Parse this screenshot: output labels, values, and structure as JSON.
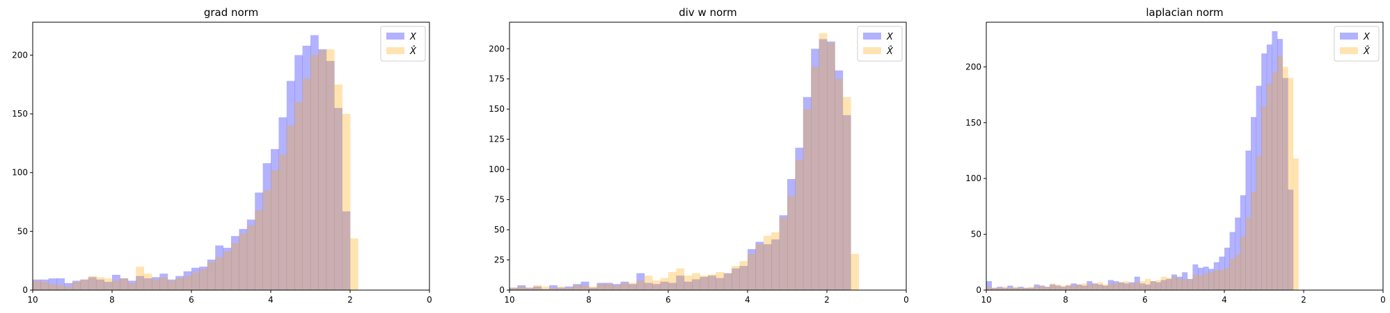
{
  "colors": {
    "series_x": "#0000ff",
    "series_xhat": "#ffa500",
    "series_alpha": 0.3
  },
  "chart_data": [
    {
      "type": "bar",
      "title": "grad norm",
      "xlabel": "",
      "ylabel": "",
      "xlim": [
        10,
        0
      ],
      "ylim": [
        0,
        228
      ],
      "x_ticks": [
        "10",
        "8",
        "6",
        "4",
        "2",
        "0"
      ],
      "y_ticks": [
        "0",
        "50",
        "100",
        "150",
        "200"
      ],
      "legend_position": "top-right",
      "grid": false,
      "bin_width": 0.2,
      "series": [
        {
          "name": "X",
          "legend_label": "X",
          "bin_starts": [
            10.0,
            9.8,
            9.6,
            9.4,
            9.2,
            9.0,
            8.8,
            8.6,
            8.4,
            8.2,
            8.0,
            7.8,
            7.6,
            7.4,
            7.2,
            7.0,
            6.8,
            6.6,
            6.4,
            6.2,
            6.0,
            5.8,
            5.6,
            5.4,
            5.2,
            5.0,
            4.8,
            4.6,
            4.4,
            4.2,
            4.0,
            3.8,
            3.6,
            3.4,
            3.2,
            3.0,
            2.8,
            2.6,
            2.4,
            2.2
          ],
          "values": [
            9,
            9,
            10,
            10,
            6,
            8,
            9,
            11,
            9,
            7,
            13,
            10,
            8,
            12,
            10,
            11,
            14,
            9,
            12,
            16,
            19,
            20,
            26,
            38,
            36,
            46,
            52,
            60,
            83,
            108,
            120,
            147,
            178,
            200,
            208,
            217,
            205,
            195,
            155,
            67
          ]
        },
        {
          "name": "X-hat",
          "legend_label": "X̂",
          "bin_starts": [
            10.0,
            9.8,
            9.6,
            9.4,
            9.2,
            9.0,
            8.8,
            8.6,
            8.4,
            8.2,
            8.0,
            7.8,
            7.6,
            7.4,
            7.2,
            7.0,
            6.8,
            6.6,
            6.4,
            6.2,
            6.0,
            5.8,
            5.6,
            5.4,
            5.2,
            5.0,
            4.8,
            4.6,
            4.4,
            4.2,
            4.0,
            3.8,
            3.6,
            3.4,
            3.2,
            3.0,
            2.8,
            2.6,
            2.4,
            2.2,
            2.0,
            1.8
          ],
          "values": [
            8,
            7,
            5,
            4,
            3,
            7,
            9,
            12,
            11,
            10,
            8,
            10,
            6,
            20,
            14,
            9,
            11,
            8,
            10,
            12,
            15,
            18,
            24,
            28,
            33,
            40,
            48,
            55,
            68,
            85,
            102,
            115,
            140,
            160,
            180,
            200,
            204,
            205,
            175,
            150,
            44,
            0
          ]
        }
      ]
    },
    {
      "type": "bar",
      "title": "div w norm",
      "xlabel": "",
      "ylabel": "",
      "xlim": [
        10,
        0
      ],
      "ylim": [
        0,
        222
      ],
      "x_ticks": [
        "10",
        "8",
        "6",
        "4",
        "2",
        "0"
      ],
      "y_ticks": [
        "0",
        "25",
        "50",
        "75",
        "100",
        "125",
        "150",
        "175",
        "200"
      ],
      "legend_position": "top-right",
      "grid": false,
      "bin_width": 0.2,
      "series": [
        {
          "name": "X",
          "legend_label": "X",
          "bin_starts": [
            10.0,
            9.8,
            9.6,
            9.4,
            9.2,
            9.0,
            8.8,
            8.6,
            8.4,
            8.2,
            8.0,
            7.8,
            7.6,
            7.4,
            7.2,
            7.0,
            6.8,
            6.6,
            6.4,
            6.2,
            6.0,
            5.8,
            5.6,
            5.4,
            5.2,
            5.0,
            4.8,
            4.6,
            4.4,
            4.2,
            4.0,
            3.8,
            3.6,
            3.4,
            3.2,
            3.0,
            2.8,
            2.6,
            2.4,
            2.2,
            2.0,
            1.8,
            1.6
          ],
          "values": [
            2,
            4,
            2,
            3,
            1,
            4,
            2,
            3,
            5,
            7,
            2,
            6,
            6,
            5,
            7,
            5,
            14,
            6,
            5,
            7,
            6,
            12,
            7,
            9,
            11,
            12,
            10,
            14,
            18,
            20,
            34,
            40,
            38,
            42,
            62,
            92,
            118,
            160,
            200,
            208,
            206,
            182,
            145
          ]
        },
        {
          "name": "X-hat",
          "legend_label": "X̂",
          "bin_starts": [
            10.0,
            9.8,
            9.6,
            9.4,
            9.2,
            9.0,
            8.8,
            8.6,
            8.4,
            8.2,
            8.0,
            7.8,
            7.6,
            7.4,
            7.2,
            7.0,
            6.8,
            6.6,
            6.4,
            6.2,
            6.0,
            5.8,
            5.6,
            5.4,
            5.2,
            5.0,
            4.8,
            4.6,
            4.4,
            4.2,
            4.0,
            3.8,
            3.6,
            3.4,
            3.2,
            3.0,
            2.8,
            2.6,
            2.4,
            2.2,
            2.0,
            1.8,
            1.6,
            1.4
          ],
          "values": [
            2,
            3,
            2,
            4,
            3,
            2,
            3,
            2,
            4,
            4,
            3,
            5,
            5,
            4,
            6,
            6,
            8,
            12,
            8,
            10,
            15,
            18,
            12,
            14,
            12,
            13,
            15,
            14,
            20,
            24,
            30,
            38,
            45,
            48,
            60,
            78,
            108,
            150,
            185,
            213,
            205,
            175,
            160,
            30
          ]
        }
      ]
    },
    {
      "type": "bar",
      "title": "laplacian norm",
      "xlabel": "",
      "ylabel": "",
      "xlim": [
        10,
        0
      ],
      "ylim": [
        0,
        240
      ],
      "x_ticks": [
        "10",
        "8",
        "6",
        "4",
        "2",
        "0"
      ],
      "y_ticks": [
        "0",
        "50",
        "100",
        "150",
        "200"
      ],
      "legend_position": "top-right",
      "grid": false,
      "bin_width": 0.1333,
      "series": [
        {
          "name": "X",
          "legend_label": "X",
          "bin_starts": [
            10.0,
            9.867,
            9.733,
            9.6,
            9.467,
            9.333,
            9.2,
            9.067,
            8.933,
            8.8,
            8.667,
            8.533,
            8.4,
            8.267,
            8.133,
            8.0,
            7.867,
            7.733,
            7.6,
            7.467,
            7.333,
            7.2,
            7.067,
            6.933,
            6.8,
            6.667,
            6.533,
            6.4,
            6.267,
            6.133,
            6.0,
            5.867,
            5.733,
            5.6,
            5.467,
            5.333,
            5.2,
            5.067,
            4.933,
            4.8,
            4.667,
            4.533,
            4.4,
            4.267,
            4.133,
            4.0,
            3.867,
            3.733,
            3.6,
            3.467,
            3.333,
            3.2,
            3.067,
            2.933,
            2.8,
            2.667,
            2.533,
            2.4
          ],
          "values": [
            8,
            2,
            3,
            2,
            4,
            2,
            3,
            2,
            2,
            5,
            4,
            3,
            5,
            4,
            3,
            4,
            6,
            5,
            4,
            8,
            6,
            5,
            4,
            9,
            8,
            7,
            6,
            7,
            12,
            6,
            5,
            8,
            7,
            9,
            10,
            14,
            12,
            16,
            10,
            23,
            20,
            21,
            19,
            25,
            30,
            38,
            52,
            65,
            85,
            125,
            155,
            183,
            212,
            220,
            232,
            225,
            190,
            90
          ]
        },
        {
          "name": "X-hat",
          "legend_label": "X̂",
          "bin_starts": [
            10.0,
            9.867,
            9.733,
            9.6,
            9.467,
            9.333,
            9.2,
            9.067,
            8.933,
            8.8,
            8.667,
            8.533,
            8.4,
            8.267,
            8.133,
            8.0,
            7.867,
            7.733,
            7.6,
            7.467,
            7.333,
            7.2,
            7.067,
            6.933,
            6.8,
            6.667,
            6.533,
            6.4,
            6.267,
            6.133,
            6.0,
            5.867,
            5.733,
            5.6,
            5.467,
            5.333,
            5.2,
            5.067,
            4.933,
            4.8,
            4.667,
            4.533,
            4.4,
            4.267,
            4.133,
            4.0,
            3.867,
            3.733,
            3.6,
            3.467,
            3.333,
            3.2,
            3.067,
            2.933,
            2.8,
            2.667,
            2.533,
            2.4,
            2.267,
            2.133
          ],
          "values": [
            3,
            2,
            2,
            3,
            2,
            3,
            2,
            2,
            3,
            3,
            4,
            3,
            6,
            5,
            4,
            5,
            4,
            5,
            6,
            5,
            6,
            7,
            5,
            6,
            6,
            7,
            8,
            6,
            7,
            8,
            10,
            8,
            9,
            12,
            11,
            12,
            10,
            10,
            9,
            14,
            13,
            15,
            16,
            18,
            18,
            20,
            28,
            32,
            48,
            65,
            88,
            120,
            165,
            185,
            195,
            210,
            200,
            190,
            118,
            0
          ]
        }
      ]
    }
  ]
}
